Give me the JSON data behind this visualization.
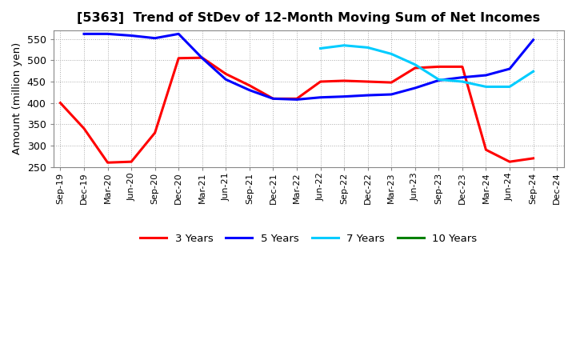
{
  "title": "[5363]  Trend of StDev of 12-Month Moving Sum of Net Incomes",
  "ylabel": "Amount (million yen)",
  "background_color": "#ffffff",
  "plot_bg_color": "#ffffff",
  "grid_color": "#aaaaaa",
  "ylim": [
    250,
    570
  ],
  "yticks": [
    250,
    300,
    350,
    400,
    450,
    500,
    550
  ],
  "x_labels": [
    "Sep-19",
    "Dec-19",
    "Mar-20",
    "Jun-20",
    "Sep-20",
    "Dec-20",
    "Mar-21",
    "Jun-21",
    "Sep-21",
    "Dec-21",
    "Mar-22",
    "Jun-22",
    "Sep-22",
    "Dec-22",
    "Mar-23",
    "Jun-23",
    "Sep-23",
    "Dec-23",
    "Mar-24",
    "Jun-24",
    "Sep-24",
    "Dec-24"
  ],
  "series": {
    "3 Years": {
      "color": "#ff0000",
      "data": [
        400,
        340,
        260,
        262,
        330,
        505,
        506,
        468,
        441,
        410,
        410,
        450,
        452,
        450,
        448,
        482,
        485,
        485,
        290,
        262,
        270,
        null
      ]
    },
    "5 Years": {
      "color": "#0000ff",
      "data": [
        null,
        562,
        562,
        558,
        552,
        562,
        505,
        455,
        430,
        410,
        408,
        413,
        415,
        418,
        420,
        435,
        453,
        460,
        465,
        480,
        548,
        null
      ]
    },
    "7 Years": {
      "color": "#00ccff",
      "data": [
        null,
        null,
        null,
        null,
        null,
        null,
        null,
        null,
        null,
        null,
        null,
        528,
        535,
        530,
        515,
        490,
        455,
        450,
        438,
        438,
        474,
        null
      ]
    },
    "10 Years": {
      "color": "#008000",
      "data": [
        null,
        null,
        null,
        null,
        null,
        null,
        null,
        null,
        null,
        null,
        null,
        null,
        null,
        null,
        null,
        null,
        null,
        null,
        null,
        null,
        null,
        null
      ]
    }
  },
  "legend_order": [
    "3 Years",
    "5 Years",
    "7 Years",
    "10 Years"
  ]
}
